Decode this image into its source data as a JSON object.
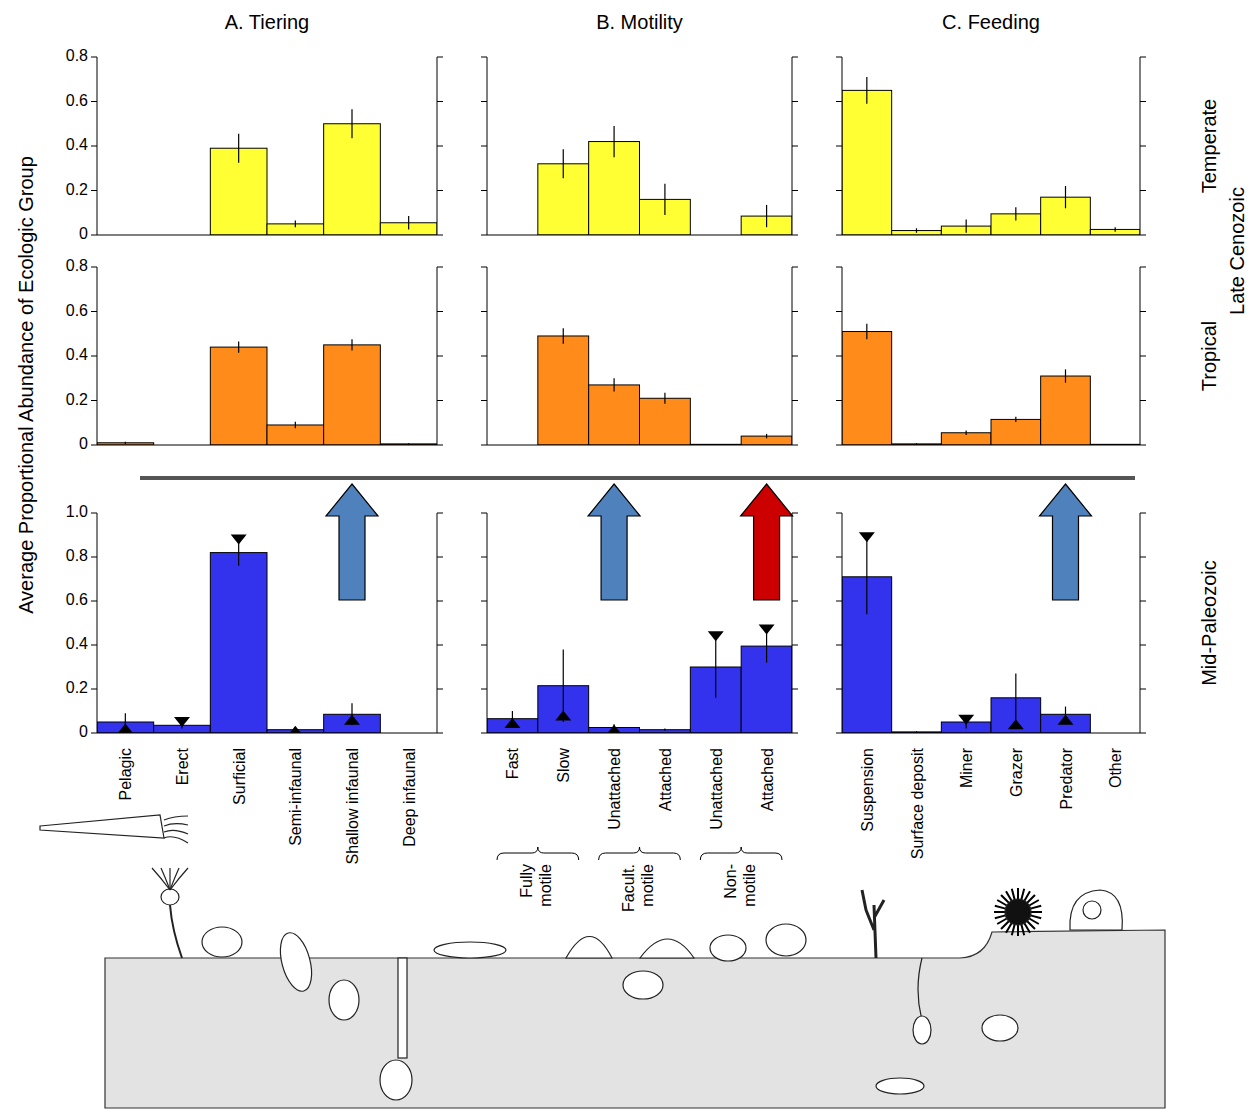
{
  "figure": {
    "y_axis_title": "Average Proportional Abundance of Ecologic Group",
    "column_titles": [
      "A. Tiering",
      "B. Motility",
      "C. Feeding"
    ],
    "row_labels": [
      "Temperate",
      "Tropical",
      "Mid-Paleozoic"
    ],
    "row_group_label": "Late Cenozoic"
  },
  "chart_data": [
    {
      "type": "bar",
      "categories": [
        null,
        null,
        null,
        null,
        null,
        null
      ],
      "values": [
        0,
        0,
        0.39,
        0.05,
        0.5,
        0.055
      ],
      "errors": [
        0,
        0,
        0.065,
        0.015,
        0.065,
        0.03
      ],
      "color": "#ffff33",
      "ylim": [
        0,
        0.8
      ],
      "yticks": [
        0,
        0.2,
        0.4,
        0.6,
        0.8
      ],
      "tick_labels": "y"
    },
    {
      "type": "bar",
      "categories": [
        null,
        null,
        null,
        null,
        null,
        null
      ],
      "values": [
        0,
        0.32,
        0.42,
        0.16,
        0,
        0.085
      ],
      "errors": [
        0,
        0.065,
        0.07,
        0.07,
        0,
        0.05
      ],
      "color": "#ffff33",
      "ylim": [
        0,
        0.8
      ],
      "yticks": [
        0,
        0.2,
        0.4,
        0.6,
        0.8
      ],
      "tick_labels": false
    },
    {
      "type": "bar",
      "categories": [
        null,
        null,
        null,
        null,
        null,
        null
      ],
      "values": [
        0.65,
        0.02,
        0.04,
        0.095,
        0.17,
        0.025
      ],
      "errors": [
        0.06,
        0.01,
        0.03,
        0.03,
        0.05,
        0.01
      ],
      "color": "#ffff33",
      "ylim": [
        0,
        0.8
      ],
      "yticks": [
        0,
        0.2,
        0.4,
        0.6,
        0.8
      ],
      "tick_labels": false
    },
    {
      "type": "bar",
      "categories": [
        null,
        null,
        null,
        null,
        null,
        null
      ],
      "values": [
        0.01,
        0,
        0.44,
        0.09,
        0.45,
        0.005
      ],
      "errors": [
        0.005,
        0,
        0.025,
        0.015,
        0.025,
        0.003
      ],
      "color": "#ff8c1a",
      "ylim": [
        0,
        0.8
      ],
      "yticks": [
        0,
        0.2,
        0.4,
        0.6,
        0.8
      ],
      "tick_labels": "y"
    },
    {
      "type": "bar",
      "categories": [
        null,
        null,
        null,
        null,
        null,
        null
      ],
      "values": [
        0,
        0.49,
        0.27,
        0.21,
        0.003,
        0.04
      ],
      "errors": [
        0,
        0.035,
        0.03,
        0.025,
        0.002,
        0.01
      ],
      "color": "#ff8c1a",
      "ylim": [
        0,
        0.8
      ],
      "yticks": [
        0,
        0.2,
        0.4,
        0.6,
        0.8
      ],
      "tick_labels": false
    },
    {
      "type": "bar",
      "categories": [
        null,
        null,
        null,
        null,
        null,
        null
      ],
      "values": [
        0.51,
        0.005,
        0.055,
        0.115,
        0.31,
        0.003
      ],
      "errors": [
        0.035,
        0.003,
        0.01,
        0.012,
        0.03,
        0.002
      ],
      "color": "#ff8c1a",
      "ylim": [
        0,
        0.8
      ],
      "yticks": [
        0,
        0.2,
        0.4,
        0.6,
        0.8
      ],
      "tick_labels": false
    },
    {
      "type": "bar",
      "categories": [
        "Pelagic",
        "Erect",
        "Surficial",
        "Semi-infaunal",
        "Shallow infaunal",
        "Deep infaunal"
      ],
      "values": [
        0.05,
        0.035,
        0.82,
        0.015,
        0.085,
        0
      ],
      "errors": [
        0.04,
        0.015,
        0.06,
        0.01,
        0.05,
        0
      ],
      "medians": [
        0.02,
        0.05,
        0.88,
        0.01,
        0.06,
        null
      ],
      "color": "#3333ee",
      "ylim": [
        0,
        1
      ],
      "yticks": [
        0,
        0.2,
        0.4,
        0.6,
        0.8,
        {
          "value": 1,
          "label": "1.0"
        }
      ],
      "tick_labels": true
    },
    {
      "type": "bar",
      "categories": [
        "Fast",
        "Slow",
        "Unattached",
        "Attached",
        "Unattached",
        "Attached"
      ],
      "values": [
        0.065,
        0.215,
        0.025,
        0.015,
        0.3,
        0.395
      ],
      "errors": [
        0.035,
        0.165,
        0.015,
        0.005,
        0.14,
        0.075
      ],
      "medians": [
        0.045,
        0.08,
        0.015,
        null,
        0.44,
        0.47
      ],
      "color": "#3333ee",
      "ylim": [
        0,
        1
      ],
      "yticks": [
        0,
        0.2,
        0.4,
        0.6,
        0.8,
        {
          "value": 1,
          "label": "1.0"
        }
      ],
      "tick_labels": "x",
      "category_groups": [
        {
          "label": "Fully motile",
          "categories": [
            0,
            1
          ]
        },
        {
          "label": "Facult. motile",
          "categories": [
            2,
            3
          ]
        },
        {
          "label": "Non-motile",
          "categories": [
            4,
            5
          ]
        }
      ]
    },
    {
      "type": "bar",
      "categories": [
        "Suspension",
        "Surface deposit",
        "Miner",
        "Grazer",
        "Predator",
        "Other"
      ],
      "values": [
        0.71,
        0.005,
        0.05,
        0.16,
        0.085,
        0
      ],
      "errors": [
        0.17,
        0.003,
        0.03,
        0.11,
        0.035,
        0
      ],
      "medians": [
        0.89,
        null,
        0.06,
        0.04,
        0.06,
        null
      ],
      "color": "#3333ee",
      "ylim": [
        0,
        1
      ],
      "yticks": [
        0,
        0.2,
        0.4,
        0.6,
        0.8,
        {
          "value": 1,
          "label": "1.0"
        }
      ],
      "tick_labels": "x"
    }
  ]
}
